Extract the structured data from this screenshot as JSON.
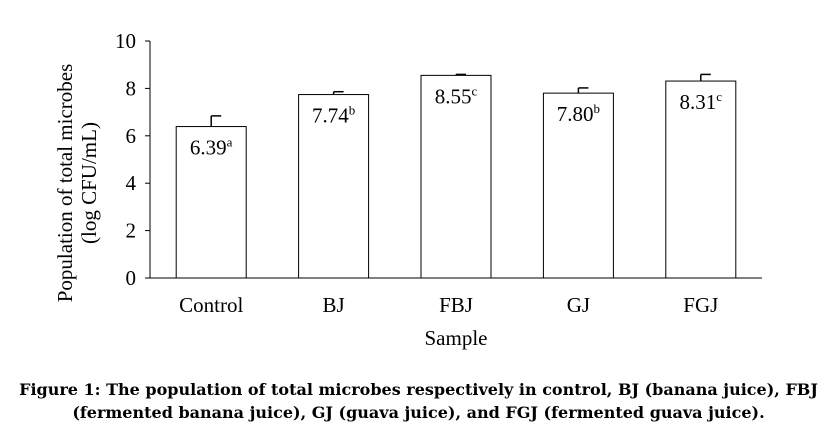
{
  "chart_data": {
    "type": "bar",
    "categories": [
      "Control",
      "BJ",
      "FBJ",
      "GJ",
      "FGJ"
    ],
    "values": [
      6.39,
      7.74,
      8.55,
      7.8,
      8.31
    ],
    "errors": [
      0.45,
      0.12,
      0.04,
      0.22,
      0.28
    ],
    "data_labels": [
      {
        "value": "6.39",
        "letter": "a"
      },
      {
        "value": "7.74",
        "letter": "b"
      },
      {
        "value": "8.55",
        "letter": "c"
      },
      {
        "value": "7.80",
        "letter": "b"
      },
      {
        "value": "8.31",
        "letter": "c"
      }
    ],
    "xlabel": "Sample",
    "ylabel_line1": "Population of total microbes",
    "ylabel_line2": "(log CFU/mL)",
    "ylim": [
      0,
      10
    ],
    "yticks": [
      "0",
      "2",
      "4",
      "6",
      "8",
      "10"
    ],
    "bar_fill": "#ffffff",
    "bar_stroke": "#000000",
    "grid": false
  },
  "caption": {
    "line1": "Figure 1: The population of total microbes respectively in control, BJ (banana juice), FBJ",
    "line2": "(fermented banana juice), GJ (guava juice), and FGJ (fermented guava juice)."
  }
}
